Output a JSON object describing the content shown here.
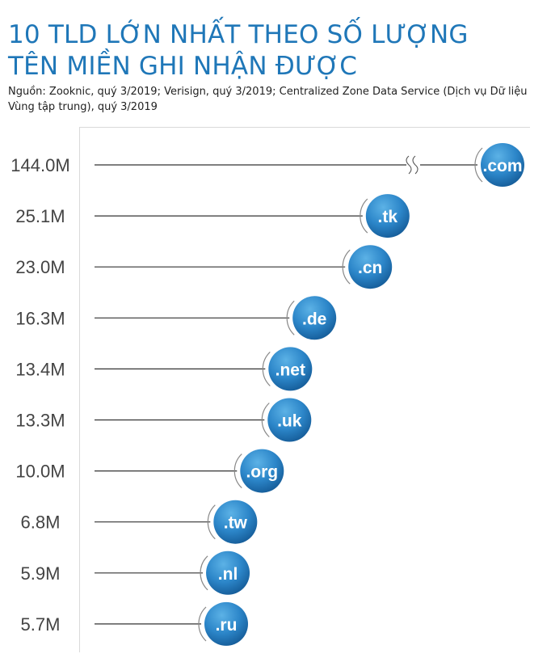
{
  "title_line1": "10 TLD LỚN NHẤT THEO SỐ LƯỢNG",
  "title_line2": "TÊN MIỀN GHI NHẬN ĐƯỢC",
  "subtitle": "Nguồn: Zooknic, quý 3/2019; Verisign, quý 3/2019; Centralized Zone Data Service (Dịch vụ Dữ liệu Vùng tập trung), quý 3/2019",
  "colors": {
    "accent": "#1f77b8",
    "bubble_light": "#4fa6de",
    "bubble_dark": "#155f9c",
    "line": "#333333"
  },
  "chart_data": {
    "type": "bar",
    "orientation": "horizontal",
    "title": "10 TLD LỚN NHẤT THEO SỐ LƯỢNG TÊN MIỀN GHI NHẬN ĐƯỢC",
    "categories": [
      ".com",
      ".tk",
      ".cn",
      ".de",
      ".net",
      ".uk",
      ".org",
      ".tw",
      ".nl",
      ".ru"
    ],
    "value_labels": [
      "144.0M",
      "25.1M",
      "23.0M",
      "16.3M",
      "13.4M",
      "13.3M",
      "10.0M",
      "6.8M",
      "5.9M",
      "5.7M"
    ],
    "values": [
      144.0,
      25.1,
      23.0,
      16.3,
      13.4,
      13.3,
      10.0,
      6.8,
      5.9,
      5.7
    ],
    "axis_break_on": ".com",
    "grid": false,
    "legend": "none"
  }
}
